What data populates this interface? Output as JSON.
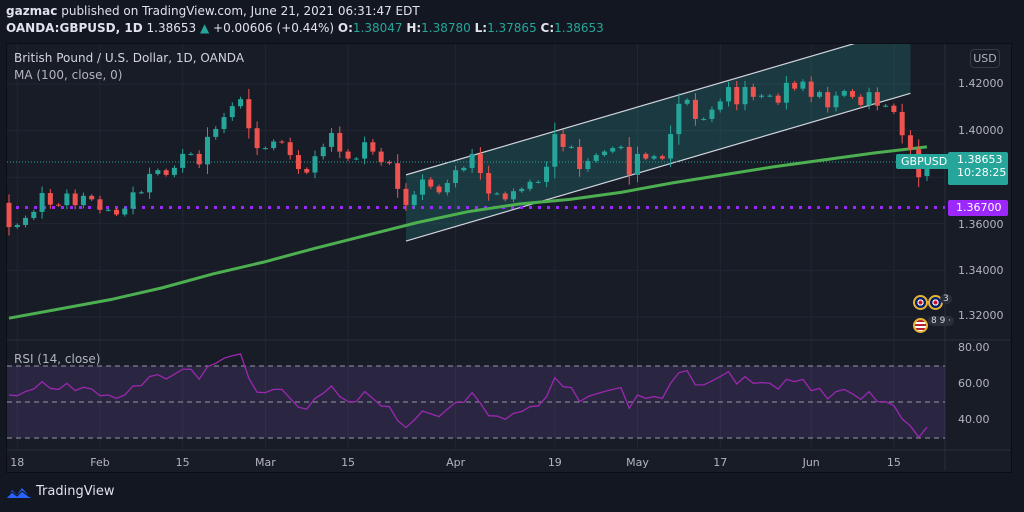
{
  "header": {
    "author": "gazmac",
    "published": "published on TradingView.com, June 21, 2021 06:31:47 EDT",
    "symbol": "OANDA:GBPUSD, 1D",
    "last": "1.38653",
    "change": "+0.00606 (+0.44%)",
    "o_label": "O:",
    "o": "1.38047",
    "h_label": "H:",
    "h": "1.38780",
    "l_label": "L:",
    "l": "1.37865",
    "c_label": "C:",
    "c": "1.38653"
  },
  "legend": {
    "title": "British Pound / U.S. Dollar, 1D, OANDA",
    "ma": "MA (100, close, 0)",
    "rsi": "RSI (14, close)"
  },
  "currency_button": "USD",
  "price_badge": {
    "symbol": "GBPUSD",
    "price": "1.38653",
    "countdown": "10:28:25"
  },
  "hline_badge": "1.36700",
  "event_badges": [
    "3",
    "8 9 ·"
  ],
  "logo": "TradingView",
  "colors": {
    "up": "#26a69a",
    "down": "#ef5350",
    "ma": "#4caf50",
    "hline": "#9c27ff",
    "rsi": "#9c27b0",
    "channel": "#26a69a",
    "logo": "#2962ff"
  },
  "chart_data": {
    "type": "candlestick",
    "title": "British Pound / U.S. Dollar, 1D, OANDA",
    "y_ticks": [
      "1.42000",
      "1.40000",
      "1.36000",
      "1.34000",
      "1.32000"
    ],
    "x_ticks": [
      "18",
      "Feb",
      "15",
      "Mar",
      "15",
      "Apr",
      "19",
      "May",
      "17",
      "Jun",
      "15"
    ],
    "ylim": [
      1.304,
      1.447
    ],
    "first_open": 1.369,
    "last_open": 1.38047,
    "close": [
      1.3586,
      1.3595,
      1.3625,
      1.3651,
      1.3732,
      1.3682,
      1.368,
      1.373,
      1.368,
      1.372,
      1.3705,
      1.366,
      1.366,
      1.364,
      1.3665,
      1.3735,
      1.3735,
      1.3814,
      1.383,
      1.381,
      1.384,
      1.39,
      1.39,
      1.3855,
      1.3973,
      1.4007,
      1.4058,
      1.4105,
      1.4135,
      1.401,
      1.3925,
      1.3925,
      1.3953,
      1.395,
      1.3895,
      1.3835,
      1.382,
      1.389,
      1.393,
      1.399,
      1.391,
      1.388,
      1.388,
      1.395,
      1.391,
      1.3865,
      1.386,
      1.375,
      1.368,
      1.3725,
      1.379,
      1.376,
      1.3735,
      1.3775,
      1.383,
      1.384,
      1.39,
      1.3818,
      1.373,
      1.373,
      1.3705,
      1.374,
      1.375,
      1.378,
      1.378,
      1.3845,
      1.3985,
      1.393,
      1.393,
      1.3835,
      1.387,
      1.3895,
      1.391,
      1.3925,
      1.393,
      1.381,
      1.39,
      1.388,
      1.389,
      1.388,
      1.3985,
      1.4115,
      1.4132,
      1.405,
      1.405,
      1.409,
      1.4125,
      1.4187,
      1.4113,
      1.4187,
      1.4145,
      1.415,
      1.415,
      1.412,
      1.4205,
      1.418,
      1.421,
      1.4145,
      1.4165,
      1.41,
      1.415,
      1.417,
      1.4145,
      1.411,
      1.4165,
      1.4107,
      1.4107,
      1.408,
      1.398,
      1.392,
      1.38,
      1.38653
    ],
    "ma100": [
      1.3195,
      1.3235,
      1.3275,
      1.3325,
      1.3385,
      1.3436,
      1.3495,
      1.355,
      1.3605,
      1.3652,
      1.3685,
      1.3705,
      1.3735,
      1.3775,
      1.381,
      1.3845,
      1.3875,
      1.3905,
      1.393
    ],
    "horizontal_line": 1.367,
    "channel": {
      "lower": [
        1.3526,
        1.416
      ],
      "upper": [
        1.381,
        1.4444
      ]
    },
    "rsi": {
      "ylim": [
        20,
        85
      ],
      "y_ticks": [
        "80.00",
        "60.00",
        "40.00"
      ],
      "bands": [
        70,
        50,
        30
      ],
      "values": [
        53.9,
        53.5,
        55.8,
        57.2,
        61.3,
        57.6,
        57,
        60.4,
        56.3,
        58.2,
        57.2,
        53.5,
        53.9,
        52,
        53.9,
        58.9,
        59.1,
        64.1,
        65.2,
        62.8,
        65.4,
        68.2,
        68.2,
        62.6,
        69.6,
        71.5,
        74.3,
        75.7,
        76.7,
        63.2,
        55.4,
        55.2,
        57,
        57,
        52,
        47.1,
        46,
        52,
        54.8,
        58.9,
        53,
        50.2,
        50.2,
        55.8,
        52,
        47.8,
        47.4,
        39.7,
        35.8,
        40,
        45,
        43.4,
        41.9,
        46,
        49.8,
        49.8,
        55.2,
        49.3,
        42.4,
        42.2,
        40.4,
        43.7,
        44.7,
        47.4,
        47.8,
        53,
        63.5,
        58.5,
        58,
        50.2,
        53,
        54.5,
        55.8,
        57,
        58,
        46.5,
        53.9,
        52,
        53,
        52,
        60.4,
        66.3,
        67.4,
        59.5,
        59.5,
        61.7,
        64.1,
        66.9,
        60,
        64.1,
        60.4,
        60.8,
        60.4,
        57.2,
        62.6,
        61.3,
        62.6,
        56.3,
        57.6,
        51.7,
        55.8,
        57,
        54.5,
        51.5,
        55.8,
        50.2,
        50.2,
        48,
        40.6,
        36.7,
        30.4,
        36
      ]
    }
  }
}
